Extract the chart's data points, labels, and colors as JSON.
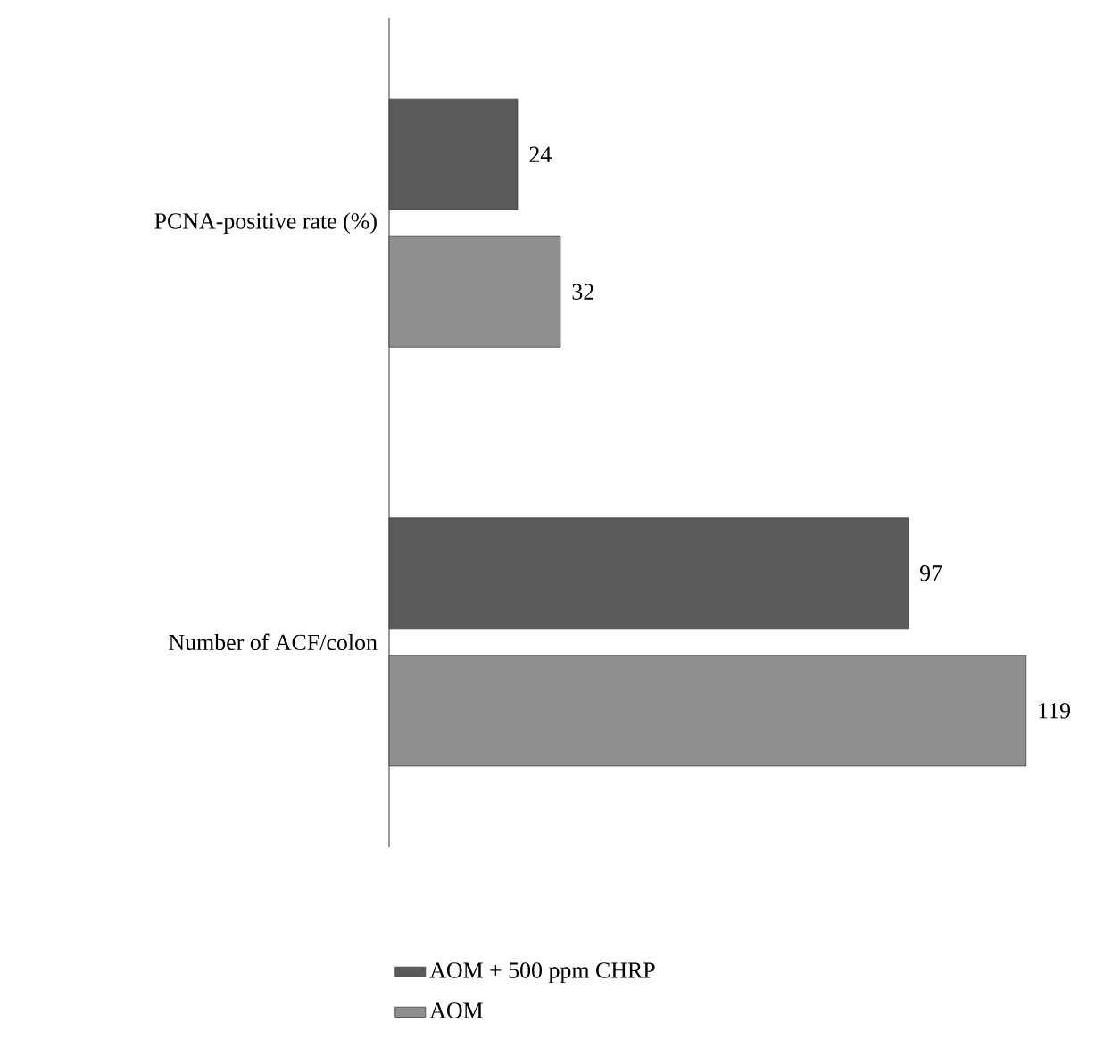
{
  "chart_data": {
    "type": "bar",
    "orientation": "horizontal",
    "categories": [
      "PCNA-positive rate (%)",
      "Number of ACF/colon"
    ],
    "series": [
      {
        "name": "AOM + 500 ppm CHRP",
        "color": "#5a5a5a",
        "values": [
          24,
          97
        ]
      },
      {
        "name": "AOM",
        "color": "#8f8f8f",
        "values": [
          32,
          119
        ]
      }
    ],
    "data_labels": true,
    "tick_labels": "y",
    "legend": "bottom",
    "grid": false
  }
}
